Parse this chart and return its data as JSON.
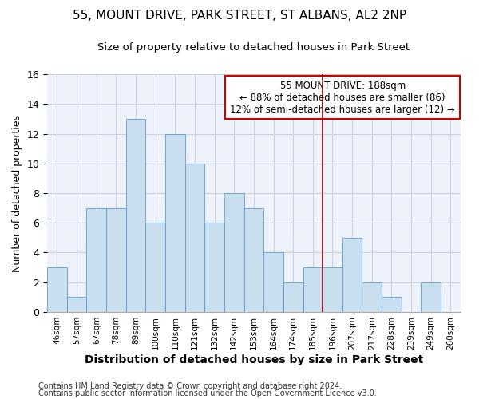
{
  "title": "55, MOUNT DRIVE, PARK STREET, ST ALBANS, AL2 2NP",
  "subtitle": "Size of property relative to detached houses in Park Street",
  "xlabel": "Distribution of detached houses by size in Park Street",
  "ylabel": "Number of detached properties",
  "bar_labels": [
    "46sqm",
    "57sqm",
    "67sqm",
    "78sqm",
    "89sqm",
    "100sqm",
    "110sqm",
    "121sqm",
    "132sqm",
    "142sqm",
    "153sqm",
    "164sqm",
    "174sqm",
    "185sqm",
    "196sqm",
    "207sqm",
    "217sqm",
    "228sqm",
    "239sqm",
    "249sqm",
    "260sqm"
  ],
  "bar_heights": [
    3,
    1,
    7,
    7,
    13,
    6,
    12,
    10,
    6,
    8,
    7,
    4,
    2,
    3,
    3,
    5,
    2,
    1,
    0,
    2,
    0
  ],
  "bar_color": "#c9dff0",
  "bar_edge_color": "#5b9bd5",
  "vline_x": 13.5,
  "vline_color": "#8b0000",
  "annotation_text": "55 MOUNT DRIVE: 188sqm\n← 88% of detached houses are smaller (86)\n12% of semi-detached houses are larger (12) →",
  "annotation_box_color": "#ffffff",
  "annotation_box_edge_color": "#cc0000",
  "ylim": [
    0,
    16
  ],
  "yticks": [
    0,
    2,
    4,
    6,
    8,
    10,
    12,
    14,
    16
  ],
  "footer1": "Contains HM Land Registry data © Crown copyright and database right 2024.",
  "footer2": "Contains public sector information licensed under the Open Government Licence v3.0.",
  "bg_color": "#eef2fa",
  "grid_color": "#c8d0e0",
  "title_fontsize": 11,
  "subtitle_fontsize": 9.5,
  "xlabel_fontsize": 10,
  "ylabel_fontsize": 9,
  "annotation_fontsize": 8.5,
  "footer_fontsize": 7
}
